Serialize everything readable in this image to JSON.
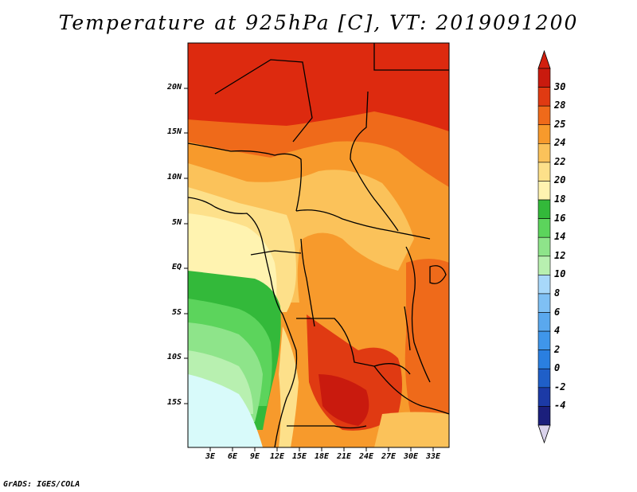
{
  "title": "Temperature at 925hPa [C], VT: 2019091200",
  "credit": "GrADS: IGES/COLA",
  "latitude_labels": [
    "20N",
    "15N",
    "10N",
    "5N",
    "EQ",
    "5S",
    "10S",
    "15S"
  ],
  "longitude_labels": [
    "3E",
    "6E",
    "9E",
    "12E",
    "15E",
    "18E",
    "21E",
    "24E",
    "27E",
    "30E",
    "33E"
  ],
  "colorbar": {
    "labels": [
      "-4",
      "-2",
      "0",
      "2",
      "4",
      "6",
      "8",
      "10",
      "12",
      "14",
      "16",
      "18",
      "20",
      "22",
      "24",
      "25",
      "28",
      "30"
    ],
    "colors": [
      "#1b1f7c",
      "#1c3aa6",
      "#1f5fc8",
      "#2a7fe0",
      "#3f96ea",
      "#5aa8ee",
      "#7fc0f4",
      "#a8d8fa",
      "#b8f0b0",
      "#8ee48a",
      "#5cd45c",
      "#33b93a",
      "#fff3b0",
      "#fde08a",
      "#fbc25a",
      "#f79a2c",
      "#ef6a1a",
      "#e03a12",
      "#c91a0e"
    ],
    "under_color": "#dad3ec",
    "over_color": "#d21f0f"
  },
  "map_colors": {
    "hot": "#dd2a0f",
    "warm": "#ef6a1a",
    "orange": "#f79a2c",
    "amber": "#fbc25a",
    "yellow": "#fde08a",
    "pale": "#fff3b0",
    "green_dark": "#33b93a",
    "green": "#5cd45c",
    "green_light": "#8ee48a",
    "mint": "#b8f0b0",
    "ice": "#d8fafa"
  }
}
